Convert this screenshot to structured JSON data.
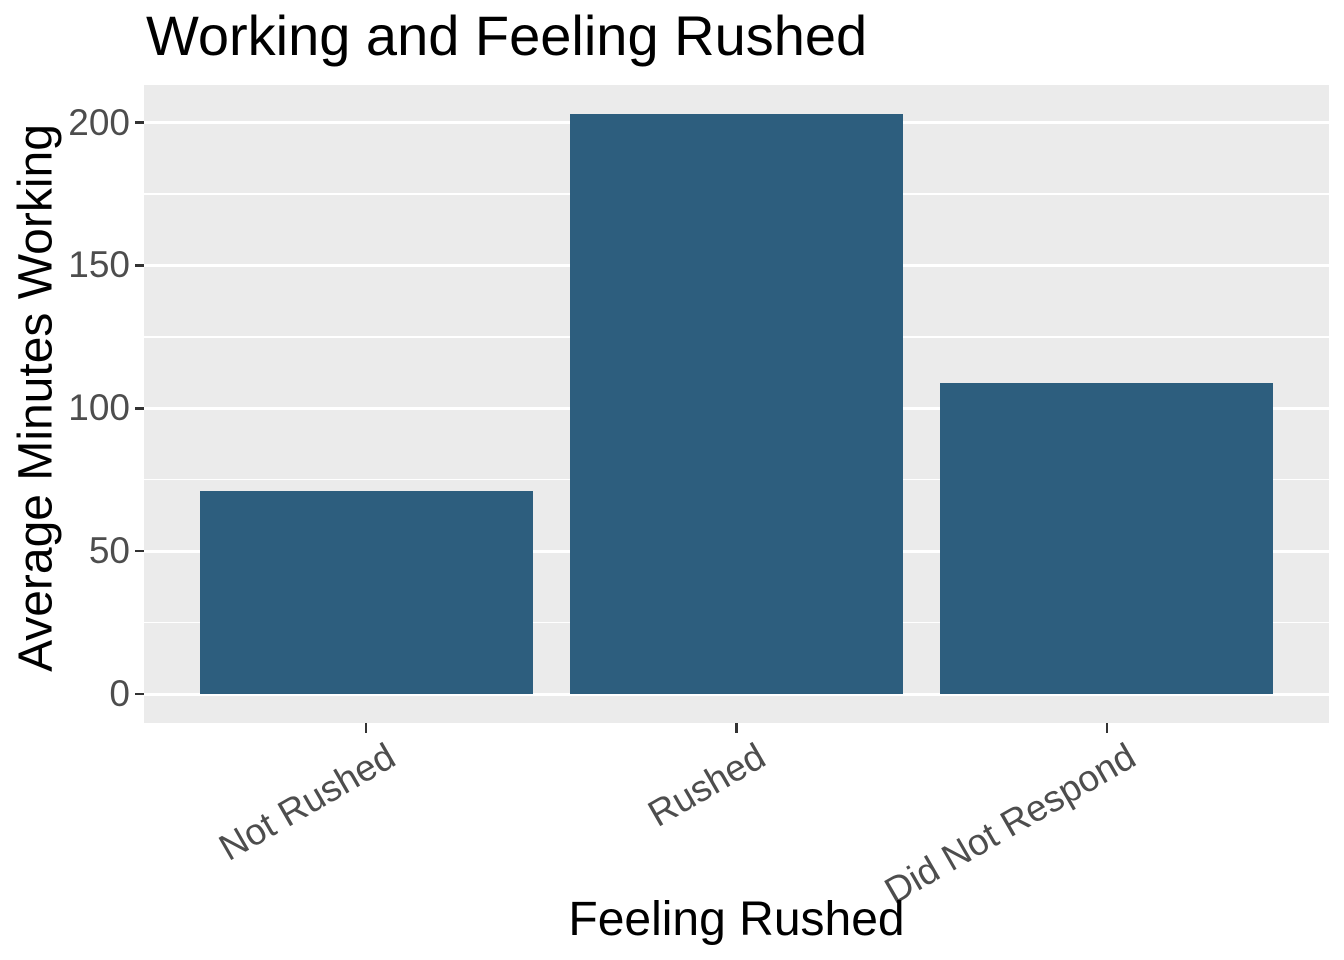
{
  "chart_data": {
    "type": "bar",
    "title": "Working and Feeling Rushed",
    "xlabel": "Feeling Rushed",
    "ylabel": "Average Minutes Working",
    "categories": [
      "Not Rushed",
      "Rushed",
      "Did Not Respond"
    ],
    "values": [
      71,
      203,
      109
    ],
    "ylim": [
      0,
      200
    ],
    "yticks": [
      0,
      50,
      100,
      150,
      200
    ],
    "yticks_minor": [
      25,
      75,
      125,
      175
    ],
    "x_label_angle_deg": 30,
    "grid": true,
    "legend": false,
    "colors": {
      "bar_fill": "#2D5E7E",
      "panel_background": "#EBEBEB",
      "gridline": "#FFFFFF",
      "tick_mark": "#333333",
      "tick_label_text": "#4D4D4D",
      "title_text": "#000000"
    }
  }
}
